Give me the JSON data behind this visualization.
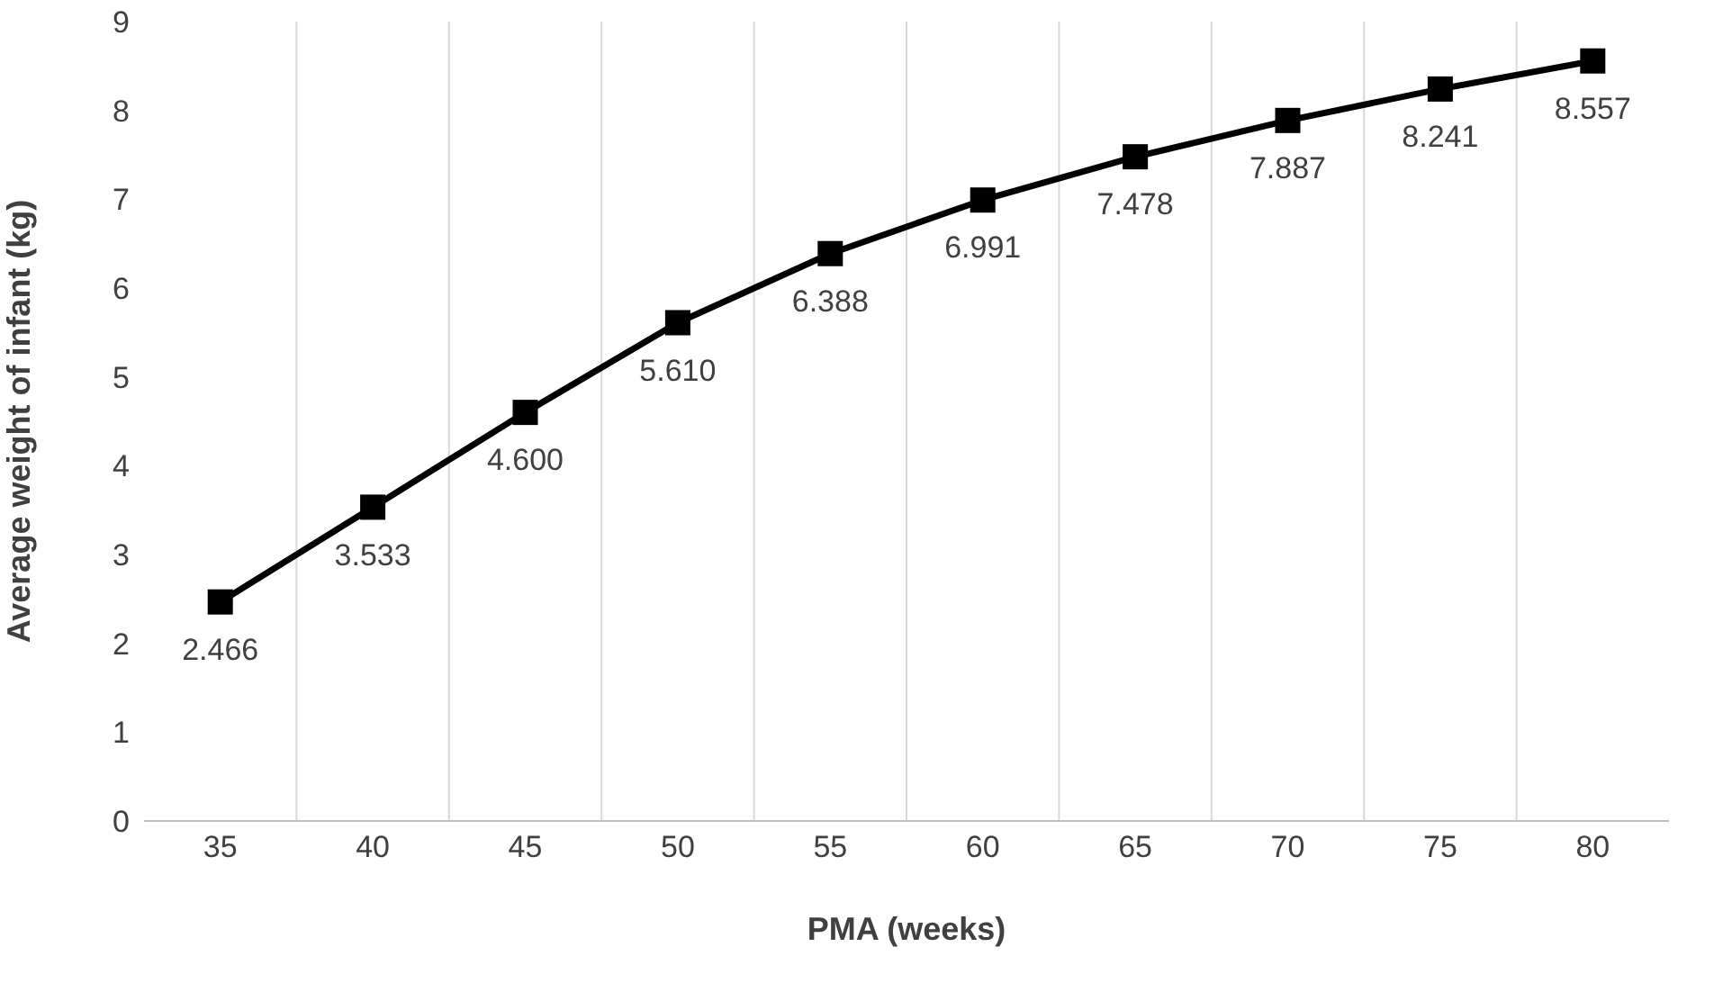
{
  "chart_data": {
    "type": "line",
    "xlabel": "PMA (weeks)",
    "ylabel": "Average weight of infant (kg)",
    "categories": [
      "35",
      "40",
      "45",
      "50",
      "55",
      "60",
      "65",
      "70",
      "75",
      "80"
    ],
    "series": [
      {
        "color": "#000000",
        "values": [
          2.466,
          3.533,
          4.6,
          5.61,
          6.388,
          6.991,
          7.478,
          7.887,
          8.241,
          8.557
        ],
        "value_labels": [
          "2.466",
          "3.533",
          "4.600",
          "5.610",
          "6.388",
          "6.991",
          "7.478",
          "7.887",
          "8.241",
          "8.557"
        ]
      }
    ],
    "ylim": [
      0,
      9
    ],
    "yticks": [
      0,
      1,
      2,
      3,
      4,
      5,
      6,
      7,
      8,
      9
    ],
    "grid": "x",
    "marker": "square",
    "line_style": "solid",
    "legend": false
  }
}
